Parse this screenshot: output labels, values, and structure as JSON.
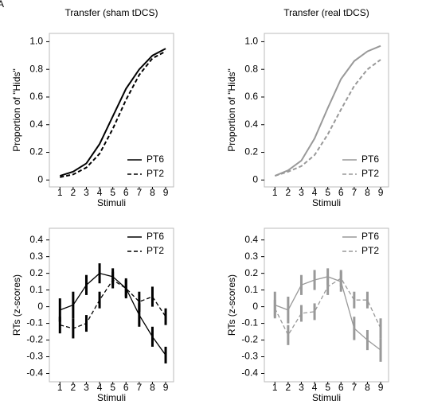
{
  "panel_label": "A",
  "chart_data": [
    {
      "type": "line",
      "title": "Transfer (sham tDCS)",
      "x_label": "Stimuli",
      "y_label": "Proportion of \"Hids\"",
      "x": [
        1,
        2,
        3,
        4,
        5,
        6,
        7,
        8,
        9
      ],
      "xlim": [
        0.2,
        9.6
      ],
      "xticks": [
        1,
        2,
        3,
        4,
        5,
        6,
        7,
        8,
        9
      ],
      "ylim": [
        -0.05,
        1.06
      ],
      "yticks": [
        0,
        0.2,
        0.4,
        0.6,
        0.8,
        {
          "value": 1,
          "label": "1.0"
        }
      ],
      "legend": "lower right",
      "series": [
        {
          "name": "PT6",
          "color": "#000000",
          "dash": false,
          "values": [
            0.03,
            0.06,
            0.12,
            0.26,
            0.46,
            0.66,
            0.8,
            0.9,
            0.95
          ]
        },
        {
          "name": "PT2",
          "color": "#000000",
          "dash": true,
          "values": [
            0.02,
            0.04,
            0.09,
            0.19,
            0.37,
            0.58,
            0.76,
            0.88,
            0.93
          ]
        }
      ]
    },
    {
      "type": "line",
      "title": "Transfer (real tDCS)",
      "x_label": "Stimuli",
      "y_label": "Proportion of \"Hids\"",
      "x": [
        1,
        2,
        3,
        4,
        5,
        6,
        7,
        8,
        9
      ],
      "xlim": [
        0.2,
        9.6
      ],
      "xticks": [
        1,
        2,
        3,
        4,
        5,
        6,
        7,
        8,
        9
      ],
      "ylim": [
        -0.05,
        1.06
      ],
      "yticks": [
        0,
        0.2,
        0.4,
        0.6,
        0.8,
        {
          "value": 1,
          "label": "1.0"
        }
      ],
      "legend": "lower right",
      "series": [
        {
          "name": "PT6",
          "color": "#999999",
          "dash": false,
          "values": [
            0.03,
            0.07,
            0.14,
            0.3,
            0.52,
            0.73,
            0.86,
            0.93,
            0.97
          ]
        },
        {
          "name": "PT2",
          "color": "#999999",
          "dash": true,
          "values": [
            0.03,
            0.06,
            0.1,
            0.18,
            0.33,
            0.51,
            0.68,
            0.8,
            0.87
          ]
        }
      ]
    },
    {
      "type": "errorline",
      "x_label": "Stimuli",
      "y_label": "RTs (z-scores)",
      "x": [
        1,
        2,
        3,
        4,
        5,
        6,
        7,
        8,
        9
      ],
      "xlim": [
        0.2,
        9.6
      ],
      "xticks": [
        1,
        2,
        3,
        4,
        5,
        6,
        7,
        8,
        9
      ],
      "ylim": [
        -0.45,
        0.47
      ],
      "yticks": [
        -0.4,
        -0.3,
        -0.2,
        -0.1,
        0,
        0.1,
        0.2,
        0.3,
        0.4
      ],
      "legend": "upper right",
      "series": [
        {
          "name": "PT6",
          "color": "#000000",
          "dash": false,
          "values": [
            -0.02,
            0.01,
            0.13,
            0.2,
            0.18,
            0.11,
            -0.05,
            -0.18,
            -0.29
          ],
          "errors": [
            0.07,
            0.08,
            0.06,
            0.06,
            0.05,
            0.06,
            0.07,
            0.06,
            0.05
          ]
        },
        {
          "name": "PT2",
          "color": "#000000",
          "dash": true,
          "values": [
            -0.11,
            -0.13,
            -0.1,
            0.04,
            0.16,
            0.11,
            0.03,
            0.06,
            -0.06
          ],
          "errors": [
            0.05,
            0.06,
            0.05,
            0.05,
            0.05,
            0.05,
            0.06,
            0.06,
            0.05
          ]
        }
      ]
    },
    {
      "type": "errorline",
      "x_label": "Stimuli",
      "y_label": "RTs (z-scores)",
      "x": [
        1,
        2,
        3,
        4,
        5,
        6,
        7,
        8,
        9
      ],
      "xlim": [
        0.2,
        9.6
      ],
      "xticks": [
        1,
        2,
        3,
        4,
        5,
        6,
        7,
        8,
        9
      ],
      "ylim": [
        -0.45,
        0.47
      ],
      "yticks": [
        -0.4,
        -0.3,
        -0.2,
        -0.1,
        0,
        0.1,
        0.2,
        0.3,
        0.4
      ],
      "legend": "upper right",
      "series": [
        {
          "name": "PT6",
          "color": "#999999",
          "dash": false,
          "values": [
            0.01,
            -0.02,
            0.13,
            0.16,
            0.18,
            0.15,
            -0.13,
            -0.2,
            -0.26
          ],
          "errors": [
            0.08,
            0.08,
            0.06,
            0.06,
            0.05,
            0.06,
            0.07,
            0.06,
            0.07
          ]
        },
        {
          "name": "PT2",
          "color": "#999999",
          "dash": true,
          "values": [
            -0.01,
            -0.17,
            -0.04,
            -0.03,
            0.12,
            0.17,
            0.04,
            0.04,
            -0.13
          ],
          "errors": [
            0.05,
            0.06,
            0.05,
            0.05,
            0.05,
            0.05,
            0.05,
            0.05,
            0.06
          ]
        }
      ]
    }
  ]
}
